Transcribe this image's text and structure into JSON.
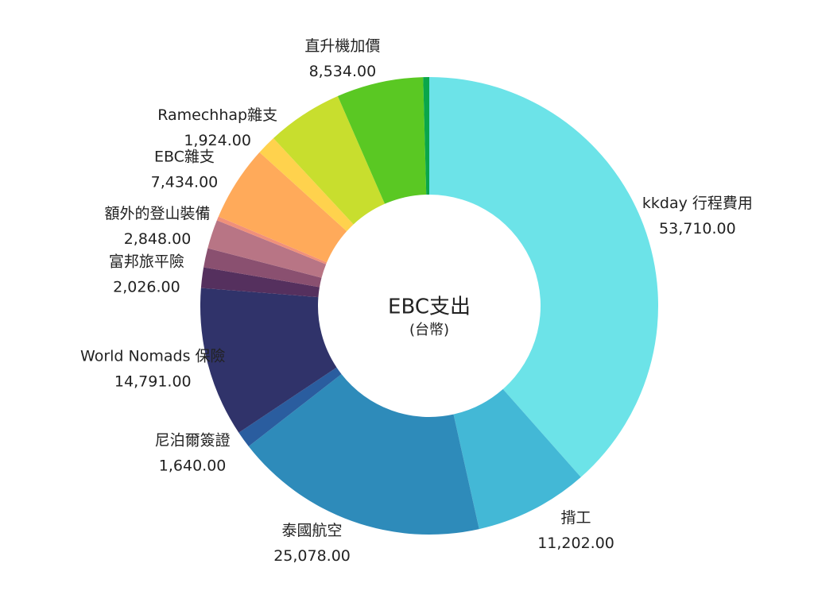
{
  "chart_data": {
    "type": "donut",
    "title": "EBC支出",
    "subtitle": "(台幣)",
    "categories": [
      "kkday 行程費用",
      "揹工",
      "泰國航空",
      "尼泊爾簽證",
      "World Nomads 保險",
      "富邦旅平險",
      null,
      "額外的登山裝備",
      null,
      "EBC雜支",
      "Ramechhap雜支",
      null,
      "直升機加價",
      null
    ],
    "values": [
      53710,
      11202,
      25078,
      1640,
      14791,
      2026,
      1900,
      2848,
      400,
      7434,
      1924,
      7500,
      8534,
      600
    ],
    "value_labels": [
      "53,710.00",
      "11,202.00",
      "25,078.00",
      "1,640.00",
      "14,791.00",
      "2,026.00",
      null,
      "2,848.00",
      null,
      "7,434.00",
      "1,924.00",
      null,
      "8,534.00",
      null
    ],
    "colors": [
      "#6ce3e8",
      "#43b8d6",
      "#2e8bba",
      "#2a5d9f",
      "#30336a",
      "#55305e",
      "#8a5070",
      "#b87585",
      "#f0907a",
      "#ffaa5a",
      "#ffd24d",
      "#c8de2e",
      "#5ac823",
      "#0aa64a"
    ]
  }
}
